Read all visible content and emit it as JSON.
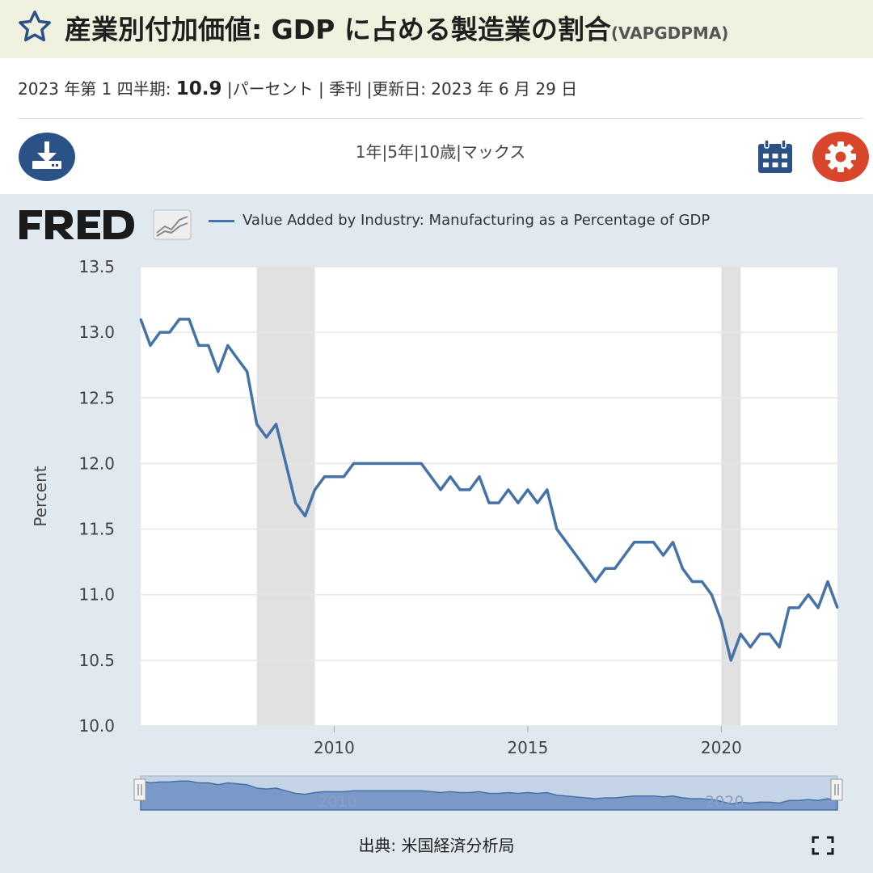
{
  "header": {
    "title": "産業別付加価値: GDP に占める製造業の割合",
    "series_code": "(VAPGDPMA)"
  },
  "meta": {
    "period": "2023 年第 1 四半期:",
    "value": "10.9",
    "rest": "|パーセント | 季刊 |更新日: 2023 年 6 月 29 日"
  },
  "toolbar": {
    "ranges": [
      "1年|",
      "5年|",
      "10歳|",
      "マックス"
    ]
  },
  "legend": {
    "label": "Value Added by Industry: Manufacturing as a Percentage of GDP"
  },
  "source": "出典: 米国経済分析局",
  "colors": {
    "line": "#4572a7",
    "recession": "#e1e1e1",
    "panel": "#e1e9f0",
    "gear": "#d9462b",
    "icon_blue": "#2b5287"
  },
  "chart_data": {
    "type": "line",
    "title": "",
    "xlabel": "",
    "ylabel": "Percent",
    "ylim": [
      10.0,
      13.5
    ],
    "yticks": [
      "10.0",
      "10.5",
      "11.0",
      "11.5",
      "12.0",
      "12.5",
      "13.0",
      "13.5"
    ],
    "xticks": [
      "2010",
      "2015",
      "2020"
    ],
    "grid": true,
    "legend_position": "top",
    "recessions": [
      {
        "start": "2008-Q1",
        "end": "2009-Q2"
      },
      {
        "start": "2020-Q1",
        "end": "2020-Q2"
      }
    ],
    "series": [
      {
        "name": "Value Added by Industry: Manufacturing as a Percentage of GDP",
        "x": [
          "2005-Q1",
          "2005-Q2",
          "2005-Q3",
          "2005-Q4",
          "2006-Q1",
          "2006-Q2",
          "2006-Q3",
          "2006-Q4",
          "2007-Q1",
          "2007-Q2",
          "2007-Q3",
          "2007-Q4",
          "2008-Q1",
          "2008-Q2",
          "2008-Q3",
          "2008-Q4",
          "2009-Q1",
          "2009-Q2",
          "2009-Q3",
          "2009-Q4",
          "2010-Q1",
          "2010-Q2",
          "2010-Q3",
          "2010-Q4",
          "2011-Q1",
          "2011-Q2",
          "2011-Q3",
          "2011-Q4",
          "2012-Q1",
          "2012-Q2",
          "2012-Q3",
          "2012-Q4",
          "2013-Q1",
          "2013-Q2",
          "2013-Q3",
          "2013-Q4",
          "2014-Q1",
          "2014-Q2",
          "2014-Q3",
          "2014-Q4",
          "2015-Q1",
          "2015-Q2",
          "2015-Q3",
          "2015-Q4",
          "2016-Q1",
          "2016-Q2",
          "2016-Q3",
          "2016-Q4",
          "2017-Q1",
          "2017-Q2",
          "2017-Q3",
          "2017-Q4",
          "2018-Q1",
          "2018-Q2",
          "2018-Q3",
          "2018-Q4",
          "2019-Q1",
          "2019-Q2",
          "2019-Q3",
          "2019-Q4",
          "2020-Q1",
          "2020-Q2",
          "2020-Q3",
          "2020-Q4",
          "2021-Q1",
          "2021-Q2",
          "2021-Q3",
          "2021-Q4",
          "2022-Q1",
          "2022-Q2",
          "2022-Q3",
          "2022-Q4",
          "2023-Q1"
        ],
        "values": [
          13.1,
          12.9,
          13.0,
          13.0,
          13.1,
          13.1,
          12.9,
          12.9,
          12.7,
          12.9,
          12.8,
          12.7,
          12.3,
          12.2,
          12.3,
          12.0,
          11.7,
          11.6,
          11.8,
          11.9,
          11.9,
          11.9,
          12.0,
          12.0,
          12.0,
          12.0,
          12.0,
          12.0,
          12.0,
          12.0,
          11.9,
          11.8,
          11.9,
          11.8,
          11.8,
          11.9,
          11.7,
          11.7,
          11.8,
          11.7,
          11.8,
          11.7,
          11.8,
          11.5,
          11.4,
          11.3,
          11.2,
          11.1,
          11.2,
          11.2,
          11.3,
          11.4,
          11.4,
          11.4,
          11.3,
          11.4,
          11.2,
          11.1,
          11.1,
          11.0,
          10.8,
          10.5,
          10.7,
          10.6,
          10.7,
          10.7,
          10.6,
          10.9,
          10.9,
          11.0,
          10.9,
          11.1,
          10.9
        ]
      }
    ]
  }
}
